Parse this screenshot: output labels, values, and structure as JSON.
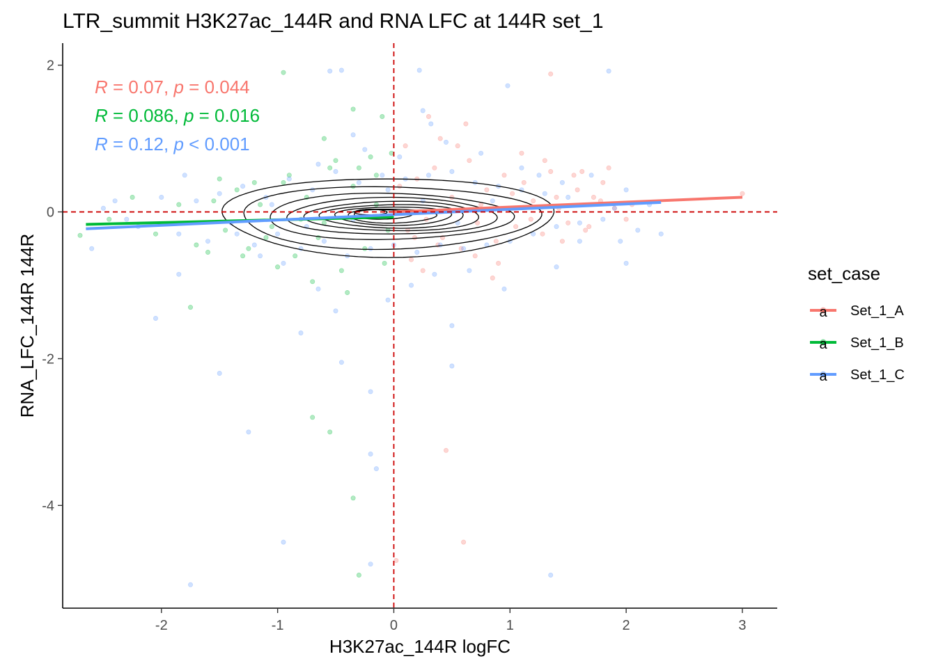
{
  "chart_data": {
    "type": "scatter",
    "title": "LTR_summit H3K27ac_144R and RNA LFC at 144R set_1",
    "xlabel": "H3K27ac_144R logFC",
    "ylabel": "RNA_LFC_144R 144R",
    "xlim": [
      -2.85,
      3.3
    ],
    "ylim": [
      -5.4,
      2.3
    ],
    "x_ticks": [
      -2,
      -1,
      0,
      1,
      2,
      3
    ],
    "x_tick_labels": [
      "-2",
      "-1",
      "0",
      "1",
      "2",
      "3"
    ],
    "y_ticks": [
      2,
      0,
      -2,
      -4
    ],
    "y_tick_labels": [
      "2",
      "0",
      "-2",
      "-4"
    ],
    "reference_lines": {
      "x": 0,
      "y": 0,
      "color": "#cc0000",
      "style": "dashed"
    },
    "grid": false,
    "legend": {
      "title": "set_case",
      "position": "right",
      "glyph": "a",
      "entries": [
        "Set_1_A",
        "Set_1_B",
        "Set_1_C"
      ]
    },
    "series": [
      {
        "name": "Set_1_A",
        "color": "#F8766D",
        "fit": {
          "x": [
            0,
            3.0
          ],
          "y": [
            0.0,
            0.2
          ]
        },
        "stat": {
          "r_label": "R",
          "r_value": " = 0.07, ",
          "p_label": "p",
          "p_value": " = 0.044"
        },
        "points": [
          [
            0.05,
            0.35
          ],
          [
            0.12,
            -0.25
          ],
          [
            0.2,
            0.45
          ],
          [
            0.28,
            -0.1
          ],
          [
            0.35,
            0.6
          ],
          [
            0.42,
            -0.35
          ],
          [
            0.5,
            0.2
          ],
          [
            0.58,
            -0.5
          ],
          [
            0.65,
            0.7
          ],
          [
            0.72,
            -0.15
          ],
          [
            0.8,
            0.3
          ],
          [
            0.88,
            -0.4
          ],
          [
            0.95,
            0.5
          ],
          [
            1.05,
            -0.2
          ],
          [
            1.12,
            0.4
          ],
          [
            1.2,
            0.15
          ],
          [
            1.28,
            -0.3
          ],
          [
            1.35,
            0.55
          ],
          [
            1.42,
            0.05
          ],
          [
            1.5,
            -0.15
          ],
          [
            1.58,
            0.3
          ],
          [
            1.65,
            -0.25
          ],
          [
            1.72,
            0.2
          ],
          [
            1.8,
            0.4
          ],
          [
            1.9,
            0.05
          ],
          [
            2.0,
            -0.1
          ],
          [
            1.85,
            0.6
          ],
          [
            1.62,
            0.55
          ],
          [
            1.45,
            -0.4
          ],
          [
            1.3,
            0.7
          ],
          [
            1.1,
            0.8
          ],
          [
            0.9,
            -0.7
          ],
          [
            0.7,
            -0.6
          ],
          [
            0.55,
            0.9
          ],
          [
            0.4,
            1.0
          ],
          [
            0.25,
            -0.8
          ],
          [
            0.15,
            -0.65
          ],
          [
            0.1,
            0.9
          ],
          [
            0.3,
            1.3
          ],
          [
            0.62,
            1.2
          ],
          [
            1.35,
            1.88
          ],
          [
            1.55,
            0.5
          ],
          [
            1.68,
            -0.2
          ],
          [
            1.78,
            0.15
          ],
          [
            0.02,
            -4.75
          ],
          [
            0.45,
            -3.25
          ],
          [
            0.6,
            -4.5
          ],
          [
            0.85,
            -0.9
          ],
          [
            2.05,
            0.1
          ],
          [
            3.0,
            0.25
          ],
          [
            0.18,
            -0.35
          ],
          [
            0.38,
            -0.45
          ],
          [
            0.75,
            0.1
          ],
          [
            1.02,
            0.25
          ],
          [
            1.18,
            -0.1
          ],
          [
            1.4,
            0.2
          ]
        ]
      },
      {
        "name": "Set_1_B",
        "color": "#00BA38",
        "fit": {
          "x": [
            -2.65,
            0
          ],
          "y": [
            -0.17,
            -0.07
          ]
        },
        "stat": {
          "r_label": "R",
          "r_value": " = 0.086, ",
          "p_label": "p",
          "p_value": " = 0.016"
        },
        "points": [
          [
            -2.7,
            -0.32
          ],
          [
            -2.45,
            -0.1
          ],
          [
            -2.25,
            0.2
          ],
          [
            -2.05,
            -0.3
          ],
          [
            -1.85,
            0.1
          ],
          [
            -1.7,
            -0.45
          ],
          [
            -1.55,
            0.15
          ],
          [
            -1.45,
            -0.25
          ],
          [
            -1.35,
            0.3
          ],
          [
            -1.25,
            -0.5
          ],
          [
            -1.15,
            0.1
          ],
          [
            -1.05,
            -0.2
          ],
          [
            -0.95,
            0.4
          ],
          [
            -0.85,
            -0.6
          ],
          [
            -0.75,
            0.2
          ],
          [
            -0.65,
            -0.35
          ],
          [
            -0.55,
            0.6
          ],
          [
            -0.45,
            -0.8
          ],
          [
            -0.35,
            0.35
          ],
          [
            -0.25,
            -0.5
          ],
          [
            -0.15,
            0.5
          ],
          [
            -0.08,
            -0.7
          ],
          [
            -0.02,
            0.8
          ],
          [
            -0.6,
            1.0
          ],
          [
            -0.35,
            1.4
          ],
          [
            -0.1,
            1.3
          ],
          [
            -0.4,
            -1.1
          ],
          [
            -0.7,
            -0.95
          ],
          [
            -1.0,
            -0.75
          ],
          [
            -1.3,
            -0.6
          ],
          [
            -1.6,
            -0.55
          ],
          [
            -1.75,
            -1.3
          ],
          [
            -0.7,
            -2.8
          ],
          [
            -0.35,
            -3.9
          ],
          [
            -0.3,
            -4.95
          ],
          [
            -0.55,
            -3.0
          ],
          [
            -0.9,
            0.5
          ],
          [
            -1.2,
            0.4
          ],
          [
            -1.5,
            0.45
          ],
          [
            -0.5,
            0.7
          ],
          [
            -0.2,
            0.75
          ],
          [
            -0.05,
            -0.25
          ],
          [
            -0.8,
            -0.1
          ],
          [
            -1.1,
            -0.35
          ],
          [
            -0.95,
            1.9
          ],
          [
            -0.3,
            0.6
          ],
          [
            -0.15,
            0.1
          ],
          [
            -0.6,
            -0.15
          ]
        ]
      },
      {
        "name": "Set_1_C",
        "color": "#619CFF",
        "fit": {
          "x": [
            -2.65,
            2.3
          ],
          "y": [
            -0.23,
            0.13
          ]
        },
        "stat": {
          "r_label": "R",
          "r_value": " = 0.12, ",
          "p_label": "p",
          "p_value": " < 0.001"
        },
        "points": [
          [
            -2.6,
            -0.5
          ],
          [
            -2.4,
            0.15
          ],
          [
            -2.2,
            -0.2
          ],
          [
            -2.0,
            0.2
          ],
          [
            -1.85,
            -0.3
          ],
          [
            -1.7,
            0.15
          ],
          [
            -1.6,
            -0.4
          ],
          [
            -1.5,
            0.25
          ],
          [
            -1.4,
            -0.15
          ],
          [
            -1.3,
            0.35
          ],
          [
            -1.2,
            -0.45
          ],
          [
            -1.1,
            0.2
          ],
          [
            -1.0,
            -0.3
          ],
          [
            -0.9,
            0.45
          ],
          [
            -0.8,
            -0.5
          ],
          [
            -0.7,
            0.3
          ],
          [
            -0.6,
            -0.4
          ],
          [
            -0.5,
            0.55
          ],
          [
            -0.4,
            -0.6
          ],
          [
            -0.3,
            0.4
          ],
          [
            -0.2,
            -0.5
          ],
          [
            -0.1,
            0.5
          ],
          [
            0.0,
            -0.45
          ],
          [
            0.1,
            0.45
          ],
          [
            0.2,
            -0.55
          ],
          [
            0.3,
            0.5
          ],
          [
            0.4,
            -0.45
          ],
          [
            0.5,
            0.55
          ],
          [
            0.6,
            -0.5
          ],
          [
            0.7,
            0.4
          ],
          [
            0.8,
            -0.45
          ],
          [
            0.9,
            0.35
          ],
          [
            1.0,
            -0.4
          ],
          [
            1.1,
            0.3
          ],
          [
            1.2,
            -0.3
          ],
          [
            1.3,
            0.25
          ],
          [
            1.4,
            -0.2
          ],
          [
            1.5,
            0.2
          ],
          [
            1.6,
            -0.15
          ],
          [
            1.7,
            0.1
          ],
          [
            1.8,
            -0.1
          ],
          [
            1.9,
            0.05
          ],
          [
            2.0,
            0.3
          ],
          [
            2.1,
            -0.25
          ],
          [
            2.2,
            0.1
          ],
          [
            2.3,
            -0.3
          ],
          [
            -0.55,
            1.92
          ],
          [
            -0.45,
            1.93
          ],
          [
            0.22,
            1.93
          ],
          [
            1.85,
            1.92
          ],
          [
            0.98,
            1.72
          ],
          [
            0.25,
            1.38
          ],
          [
            0.32,
            1.2
          ],
          [
            -0.35,
            1.05
          ],
          [
            -1.5,
            -2.2
          ],
          [
            -1.25,
            -3.0
          ],
          [
            -0.8,
            -1.65
          ],
          [
            -0.5,
            -1.35
          ],
          [
            -0.45,
            -2.05
          ],
          [
            -0.2,
            -2.45
          ],
          [
            -0.2,
            -3.3
          ],
          [
            -0.15,
            -3.5
          ],
          [
            0.5,
            -2.1
          ],
          [
            0.5,
            -1.55
          ],
          [
            -0.2,
            -4.8
          ],
          [
            1.35,
            -4.95
          ],
          [
            -0.95,
            -4.5
          ],
          [
            -1.75,
            -5.08
          ],
          [
            -2.05,
            -1.45
          ],
          [
            -1.85,
            -0.85
          ],
          [
            0.95,
            -1.05
          ],
          [
            1.4,
            -0.75
          ],
          [
            1.6,
            -0.4
          ],
          [
            2.0,
            -0.7
          ],
          [
            -0.05,
            -1.2
          ],
          [
            0.15,
            -1.0
          ],
          [
            0.35,
            -0.85
          ],
          [
            0.65,
            -0.8
          ],
          [
            -0.65,
            -1.05
          ],
          [
            -0.95,
            -0.7
          ],
          [
            -1.15,
            -0.6
          ],
          [
            0.05,
            0.75
          ],
          [
            0.45,
            0.95
          ],
          [
            0.75,
            0.8
          ],
          [
            -0.25,
            0.85
          ],
          [
            -0.65,
            0.65
          ],
          [
            1.1,
            0.6
          ],
          [
            1.25,
            0.5
          ],
          [
            -1.8,
            0.5
          ],
          [
            -2.3,
            -0.1
          ],
          [
            -2.5,
            0.05
          ],
          [
            -1.35,
            -0.3
          ],
          [
            0.85,
            0.15
          ],
          [
            1.45,
            0.4
          ],
          [
            -0.05,
            0.3
          ],
          [
            0.55,
            -0.15
          ],
          [
            -0.75,
            -0.2
          ],
          [
            -1.05,
            0.1
          ],
          [
            0.25,
            0.15
          ],
          [
            -0.35,
            -0.1
          ],
          [
            1.7,
            0.5
          ],
          [
            1.95,
            -0.4
          ]
        ]
      }
    ],
    "density_contours": {
      "color": "#000000",
      "center": [
        0.0,
        -0.05
      ],
      "levels": [
        {
          "rx": 1.42,
          "ryUp": 0.52,
          "ryDown": 0.55,
          "dx": -0.05,
          "dy": 0.0
        },
        {
          "rx": 1.28,
          "ryUp": 0.4,
          "ryDown": 0.45,
          "dx": -0.05,
          "dy": 0.0
        },
        {
          "rx": 1.05,
          "ryUp": 0.3,
          "ryDown": 0.33,
          "dx": -0.05,
          "dy": 0.0
        },
        {
          "rx": 0.9,
          "ryUp": 0.24,
          "ryDown": 0.26,
          "dx": -0.02,
          "dy": 0.0
        },
        {
          "rx": 0.75,
          "ryUp": 0.19,
          "ryDown": 0.21,
          "dx": 0.0,
          "dy": 0.0
        },
        {
          "rx": 0.62,
          "ryUp": 0.15,
          "ryDown": 0.17,
          "dx": 0.0,
          "dy": 0.0
        },
        {
          "rx": 0.5,
          "ryUp": 0.12,
          "ryDown": 0.13,
          "dx": 0.0,
          "dy": 0.0
        },
        {
          "rx": 0.38,
          "ryUp": 0.09,
          "ryDown": 0.1,
          "dx": -0.02,
          "dy": 0.0
        },
        {
          "rx": 0.25,
          "ryUp": 0.06,
          "ryDown": 0.07,
          "dx": -0.1,
          "dy": 0.02
        },
        {
          "rx": 0.14,
          "ryUp": 0.035,
          "ryDown": 0.04,
          "dx": -0.2,
          "dy": 0.05
        }
      ]
    }
  }
}
